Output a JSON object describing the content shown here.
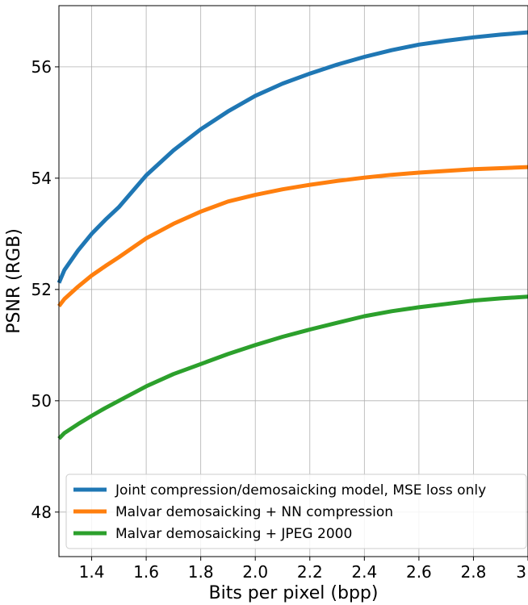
{
  "chart_data": {
    "type": "line",
    "title": "",
    "xlabel": "Bits per pixel (bpp)",
    "ylabel": "PSNR (RGB)",
    "xlim": [
      1.28,
      3.0
    ],
    "ylim": [
      47.2,
      57.1
    ],
    "xticks": [
      1.4,
      1.6,
      1.8,
      2.0,
      2.2,
      2.4,
      2.6,
      2.8,
      3.0
    ],
    "xtick_labels": [
      "1.4",
      "1.6",
      "1.8",
      "2.0",
      "2.2",
      "2.4",
      "2.6",
      "2.8",
      "3"
    ],
    "yticks": [
      48,
      50,
      52,
      54,
      56
    ],
    "ytick_labels": [
      "48",
      "50",
      "52",
      "54",
      "56"
    ],
    "grid": true,
    "legend_position": "lower-right",
    "series": [
      {
        "name": "Joint compression/demosaicking model, MSE loss only",
        "color": "#1f77b4",
        "x": [
          1.28,
          1.3,
          1.35,
          1.4,
          1.45,
          1.5,
          1.6,
          1.7,
          1.8,
          1.9,
          2.0,
          2.1,
          2.2,
          2.3,
          2.4,
          2.5,
          2.6,
          2.7,
          2.8,
          2.9,
          3.0
        ],
        "y": [
          52.12,
          52.35,
          52.7,
          53.0,
          53.25,
          53.48,
          54.05,
          54.5,
          54.88,
          55.2,
          55.48,
          55.7,
          55.88,
          56.04,
          56.18,
          56.3,
          56.4,
          56.47,
          56.53,
          56.58,
          56.62
        ]
      },
      {
        "name": "Malvar demosaicking + NN compression",
        "color": "#ff7f0e",
        "x": [
          1.28,
          1.3,
          1.35,
          1.4,
          1.45,
          1.5,
          1.6,
          1.7,
          1.8,
          1.9,
          2.0,
          2.1,
          2.2,
          2.3,
          2.4,
          2.5,
          2.6,
          2.7,
          2.8,
          2.9,
          3.0
        ],
        "y": [
          51.7,
          51.83,
          52.05,
          52.25,
          52.42,
          52.58,
          52.92,
          53.18,
          53.4,
          53.58,
          53.7,
          53.8,
          53.88,
          53.95,
          54.01,
          54.06,
          54.1,
          54.13,
          54.16,
          54.18,
          54.2
        ]
      },
      {
        "name": "Malvar demosaicking + JPEG 2000",
        "color": "#2ca02c",
        "x": [
          1.28,
          1.3,
          1.35,
          1.4,
          1.45,
          1.5,
          1.6,
          1.7,
          1.8,
          1.9,
          2.0,
          2.1,
          2.2,
          2.3,
          2.4,
          2.5,
          2.6,
          2.7,
          2.8,
          2.9,
          3.0
        ],
        "y": [
          49.32,
          49.42,
          49.58,
          49.73,
          49.87,
          50.0,
          50.26,
          50.48,
          50.66,
          50.84,
          51.0,
          51.15,
          51.28,
          51.4,
          51.52,
          51.61,
          51.68,
          51.74,
          51.8,
          51.84,
          51.87
        ]
      }
    ]
  }
}
